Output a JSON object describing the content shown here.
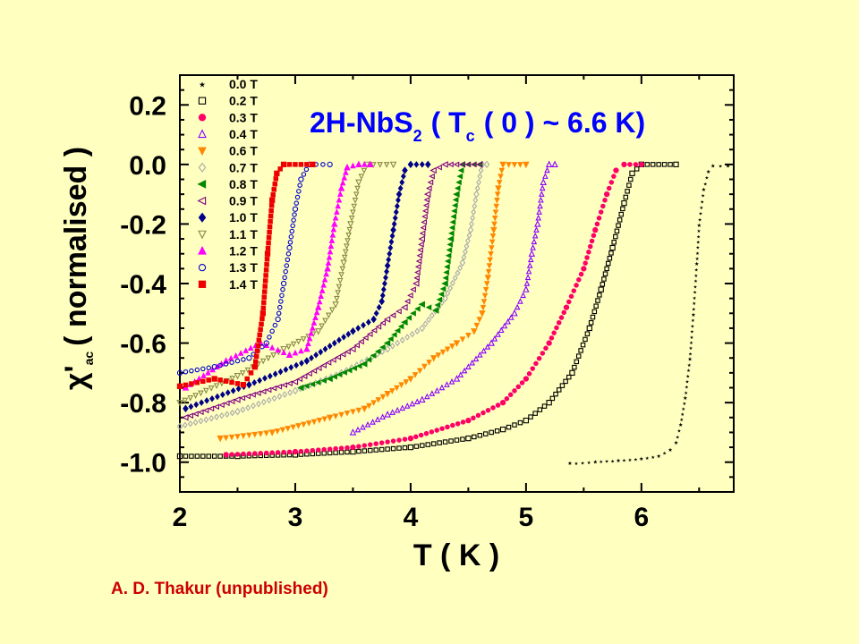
{
  "chart_data": {
    "type": "scatter",
    "annotation": {
      "prefix": "2H-NbS",
      "sub": "2",
      "middle": "( T",
      "sub2": "c",
      "suffix": "( 0 ) ~ 6.6 K)"
    },
    "xlabel": "T ( K )",
    "ylabel": {
      "symbol": "χ'",
      "sub": "ac",
      "text": "( normalised )"
    },
    "xlim": [
      2,
      6.8
    ],
    "ylim": [
      -1.1,
      0.3
    ],
    "xticks": [
      "2",
      "3",
      "4",
      "5",
      "6"
    ],
    "yticks": [
      "0.2",
      "0.0",
      "-0.2",
      "-0.4",
      "-0.6",
      "-0.8",
      "-1.0"
    ],
    "legend_position": "top-left",
    "series": [
      {
        "name": "0.0 T",
        "color": "#000000",
        "marker": "star",
        "points": [
          [
            5.38,
            -1.0
          ],
          [
            5.6,
            -0.995
          ],
          [
            5.8,
            -0.99
          ],
          [
            6.0,
            -0.985
          ],
          [
            6.15,
            -0.975
          ],
          [
            6.25,
            -0.955
          ],
          [
            6.3,
            -0.93
          ],
          [
            6.34,
            -0.87
          ],
          [
            6.38,
            -0.78
          ],
          [
            6.42,
            -0.65
          ],
          [
            6.45,
            -0.5
          ],
          [
            6.48,
            -0.33
          ],
          [
            6.5,
            -0.2
          ],
          [
            6.54,
            -0.08
          ],
          [
            6.58,
            -0.02
          ],
          [
            6.62,
            0.0
          ],
          [
            6.75,
            0.0
          ]
        ]
      },
      {
        "name": "0.2 T",
        "color": "#000000",
        "marker": "open-square",
        "points": [
          [
            2.0,
            -0.98
          ],
          [
            2.5,
            -0.98
          ],
          [
            3.0,
            -0.975
          ],
          [
            3.5,
            -0.965
          ],
          [
            4.0,
            -0.95
          ],
          [
            4.5,
            -0.92
          ],
          [
            4.8,
            -0.89
          ],
          [
            5.0,
            -0.86
          ],
          [
            5.2,
            -0.8
          ],
          [
            5.4,
            -0.7
          ],
          [
            5.55,
            -0.55
          ],
          [
            5.65,
            -0.42
          ],
          [
            5.75,
            -0.28
          ],
          [
            5.85,
            -0.13
          ],
          [
            5.92,
            -0.03
          ],
          [
            6.0,
            0.0
          ],
          [
            6.3,
            0.0
          ]
        ]
      },
      {
        "name": "0.3 T",
        "color": "#ff0066",
        "marker": "dot",
        "points": [
          [
            2.4,
            -0.975
          ],
          [
            3.0,
            -0.965
          ],
          [
            3.5,
            -0.95
          ],
          [
            4.0,
            -0.92
          ],
          [
            4.5,
            -0.86
          ],
          [
            4.8,
            -0.8
          ],
          [
            5.0,
            -0.72
          ],
          [
            5.2,
            -0.6
          ],
          [
            5.35,
            -0.48
          ],
          [
            5.5,
            -0.35
          ],
          [
            5.6,
            -0.22
          ],
          [
            5.7,
            -0.1
          ],
          [
            5.78,
            -0.02
          ],
          [
            5.85,
            0.0
          ],
          [
            6.0,
            0.0
          ]
        ]
      },
      {
        "name": "0.4 T",
        "color": "#8800ff",
        "marker": "open-triangle-up",
        "points": [
          [
            3.5,
            -0.9
          ],
          [
            3.8,
            -0.84
          ],
          [
            4.1,
            -0.79
          ],
          [
            4.4,
            -0.72
          ],
          [
            4.7,
            -0.6
          ],
          [
            4.9,
            -0.5
          ],
          [
            5.0,
            -0.42
          ],
          [
            5.05,
            -0.3
          ],
          [
            5.1,
            -0.2
          ],
          [
            5.15,
            -0.06
          ],
          [
            5.2,
            0.0
          ],
          [
            5.25,
            0.0
          ]
        ]
      },
      {
        "name": "0.6 T",
        "color": "#ff8800",
        "marker": "triangle-down",
        "points": [
          [
            2.35,
            -0.92
          ],
          [
            2.8,
            -0.9
          ],
          [
            3.3,
            -0.85
          ],
          [
            3.6,
            -0.82
          ],
          [
            3.8,
            -0.77
          ],
          [
            4.0,
            -0.72
          ],
          [
            4.2,
            -0.65
          ],
          [
            4.4,
            -0.6
          ],
          [
            4.55,
            -0.56
          ],
          [
            4.62,
            -0.5
          ],
          [
            4.67,
            -0.38
          ],
          [
            4.72,
            -0.22
          ],
          [
            4.76,
            -0.08
          ],
          [
            4.8,
            0.0
          ],
          [
            5.0,
            0.0
          ]
        ]
      },
      {
        "name": "0.7 T",
        "color": "#aaaaaa",
        "marker": "open-diamond",
        "points": [
          [
            2.0,
            -0.88
          ],
          [
            2.5,
            -0.83
          ],
          [
            3.0,
            -0.76
          ],
          [
            3.4,
            -0.7
          ],
          [
            3.8,
            -0.62
          ],
          [
            4.1,
            -0.55
          ],
          [
            4.3,
            -0.45
          ],
          [
            4.45,
            -0.33
          ],
          [
            4.52,
            -0.22
          ],
          [
            4.57,
            -0.1
          ],
          [
            4.62,
            0.0
          ],
          [
            4.66,
            0.0
          ]
        ]
      },
      {
        "name": "0.8 T",
        "color": "#008800",
        "marker": "triangle-left",
        "points": [
          [
            3.05,
            -0.75
          ],
          [
            3.3,
            -0.72
          ],
          [
            3.6,
            -0.67
          ],
          [
            3.8,
            -0.6
          ],
          [
            3.95,
            -0.53
          ],
          [
            4.1,
            -0.47
          ],
          [
            4.22,
            -0.49
          ],
          [
            4.3,
            -0.4
          ],
          [
            4.35,
            -0.25
          ],
          [
            4.4,
            -0.1
          ],
          [
            4.45,
            0.0
          ],
          [
            4.6,
            0.0
          ]
        ]
      },
      {
        "name": "0.9 T",
        "color": "#800080",
        "marker": "open-triangle-left",
        "points": [
          [
            2.05,
            -0.85
          ],
          [
            2.5,
            -0.79
          ],
          [
            3.0,
            -0.73
          ],
          [
            3.5,
            -0.62
          ],
          [
            3.8,
            -0.52
          ],
          [
            3.95,
            -0.48
          ],
          [
            4.05,
            -0.4
          ],
          [
            4.1,
            -0.25
          ],
          [
            4.15,
            -0.1
          ],
          [
            4.2,
            -0.02
          ],
          [
            4.3,
            0.0
          ],
          [
            4.6,
            0.0
          ]
        ]
      },
      {
        "name": "1.0 T",
        "color": "#000088",
        "marker": "diamond",
        "points": [
          [
            2.05,
            -0.82
          ],
          [
            2.6,
            -0.74
          ],
          [
            3.1,
            -0.66
          ],
          [
            3.5,
            -0.56
          ],
          [
            3.68,
            -0.52
          ],
          [
            3.75,
            -0.46
          ],
          [
            3.8,
            -0.34
          ],
          [
            3.85,
            -0.22
          ],
          [
            3.9,
            -0.1
          ],
          [
            3.95,
            -0.02
          ],
          [
            4.0,
            0.0
          ],
          [
            4.15,
            0.0
          ]
        ]
      },
      {
        "name": "1.1 T",
        "color": "#888844",
        "marker": "open-triangle-down",
        "points": [
          [
            2.0,
            -0.8
          ],
          [
            2.5,
            -0.71
          ],
          [
            2.9,
            -0.62
          ],
          [
            3.2,
            -0.56
          ],
          [
            3.35,
            -0.47
          ],
          [
            3.42,
            -0.33
          ],
          [
            3.48,
            -0.2
          ],
          [
            3.55,
            -0.06
          ],
          [
            3.62,
            0.0
          ],
          [
            3.85,
            0.0
          ]
        ]
      },
      {
        "name": "1.2 T",
        "color": "#ff00ff",
        "marker": "triangle-up",
        "points": [
          [
            2.05,
            -0.75
          ],
          [
            2.4,
            -0.66
          ],
          [
            2.7,
            -0.6
          ],
          [
            2.95,
            -0.64
          ],
          [
            3.1,
            -0.62
          ],
          [
            3.2,
            -0.48
          ],
          [
            3.28,
            -0.35
          ],
          [
            3.34,
            -0.2
          ],
          [
            3.4,
            -0.08
          ],
          [
            3.45,
            -0.01
          ],
          [
            3.55,
            0.0
          ],
          [
            3.65,
            0.0
          ]
        ]
      },
      {
        "name": "1.3 T",
        "color": "#0000cc",
        "marker": "open-circle",
        "points": [
          [
            2.0,
            -0.7
          ],
          [
            2.3,
            -0.68
          ],
          [
            2.6,
            -0.65
          ],
          [
            2.75,
            -0.6
          ],
          [
            2.85,
            -0.52
          ],
          [
            2.9,
            -0.4
          ],
          [
            2.95,
            -0.28
          ],
          [
            3.0,
            -0.15
          ],
          [
            3.05,
            -0.05
          ],
          [
            3.12,
            0.0
          ],
          [
            3.3,
            0.0
          ]
        ]
      },
      {
        "name": "1.4 T",
        "color": "#ee0000",
        "marker": "square",
        "points": [
          [
            2.0,
            -0.745
          ],
          [
            2.3,
            -0.72
          ],
          [
            2.55,
            -0.74
          ],
          [
            2.65,
            -0.68
          ],
          [
            2.72,
            -0.5
          ],
          [
            2.76,
            -0.3
          ],
          [
            2.8,
            -0.12
          ],
          [
            2.84,
            -0.03
          ],
          [
            2.9,
            0.0
          ],
          [
            3.15,
            0.0
          ]
        ]
      }
    ]
  },
  "credit": "A. D. Thakur (unpublished)"
}
